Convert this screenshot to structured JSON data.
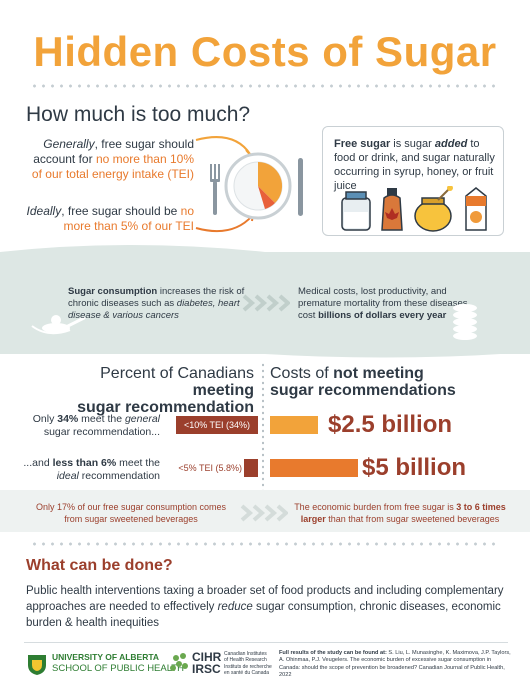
{
  "title": "Hidden Costs of Sugar",
  "section1": {
    "heading": "How much is too much?",
    "general": {
      "lead": "Generally",
      "text": ", free sugar should account for ",
      "highlight": "no more than 10% of our total energy intake (TEI)"
    },
    "ideal": {
      "lead": "Ideally",
      "text": ", free sugar should be ",
      "highlight": "no more than 5% of our TEI"
    },
    "definition": {
      "term": "Free sugar",
      "text1": " is sugar ",
      "emph": "added",
      "text2": " to food or drink, and sugar naturally occurring in syrup, honey, or fruit juice"
    }
  },
  "band": {
    "left": {
      "term": "Sugar consumption",
      "text": " increases the risk of chronic diseases such as ",
      "emph": "diabetes, heart disease & various cancers"
    },
    "right": {
      "text": "Medical costs, lost productivity, and premature mortality from these diseases cost ",
      "emph": "billions of dollars every year"
    }
  },
  "section2": {
    "left_head": {
      "a": "Percent of Canadians ",
      "b": "meeting",
      "c": "sugar recommendation"
    },
    "right_head": {
      "a": "Costs of ",
      "b": "not meeting",
      "c": "sugar recommendations"
    },
    "row1": {
      "t1": "Only ",
      "bold": "34%",
      "t2": " meet the ",
      "emph": "general",
      "t3": " sugar recommendation...",
      "bar": "<10% TEI (34%)",
      "cost": "$2.5 billion"
    },
    "row2": {
      "t1": "...and ",
      "bold": "less than 6%",
      "t2": " meet the ",
      "emph": "ideal",
      "t3": " recommendation",
      "bar": "<5% TEI (5.8%)",
      "cost": "$5 billion"
    },
    "bottom_left": "Only 17% of our free sugar consumption comes from sugar sweetened beverages",
    "bottom_right": {
      "a": "The economic burden from free sugar is ",
      "b": "3 to 6 times larger",
      "c": " than that from sugar sweetened beverages"
    }
  },
  "section3": {
    "heading": "What can be done?",
    "text1": "Public health interventions taxing a broader set of food products and including complementary approaches are needed to effectively ",
    "emph": "reduce",
    "text2": " sugar consumption, chronic diseases, economic burden & health inequities"
  },
  "footer": {
    "ua_line1": "UNIVERSITY OF ALBERTA",
    "ua_line2": "SCHOOL OF PUBLIC HEALTH",
    "cihr": "CIHR",
    "irsc": "IRSC",
    "cihr_en": "Canadian Institutes of Health Research",
    "cihr_fr": "Instituts de recherche en santé du Canada",
    "citation_lead": "Full results of the study can be found at: ",
    "citation": "S. Liu, L. Munasinghe, K. Maximova, J.P. Taylors, A. Ohinmaa, P.J. Veugelers. The economic burden of excessive sugar consumption in Canada: should the scope of prevention be broadened? Canadian Journal of Public Health, 2022"
  },
  "colors": {
    "orange": "#e87a2d",
    "amber": "#f2a33a",
    "brown": "#9b3f2c",
    "band": "#dde7e4"
  }
}
